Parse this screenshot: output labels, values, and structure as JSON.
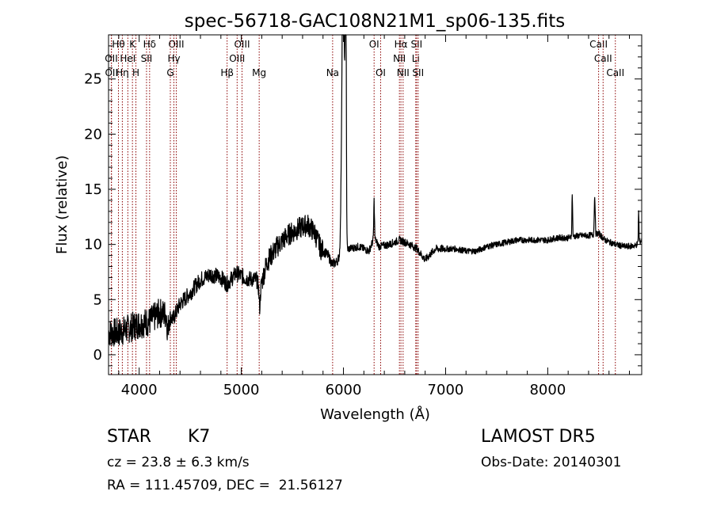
{
  "chart_data": {
    "type": "line",
    "title": "spec-56718-GAC108N21M1_sp06-135.fits",
    "xlabel": "Wavelength (Å)",
    "ylabel": "Flux (relative)",
    "xlim": [
      3700,
      8920
    ],
    "ylim": [
      -1.8,
      29
    ],
    "xticks": [
      4000,
      5000,
      6000,
      7000,
      8000
    ],
    "yticks": [
      0,
      5,
      10,
      15,
      20,
      25
    ],
    "lines": [
      {
        "name": "Hθ",
        "x": 3797,
        "row": 0
      },
      {
        "name": "K",
        "x": 3934,
        "row": 0
      },
      {
        "name": "Hδ",
        "x": 4102,
        "row": 0
      },
      {
        "name": "OIII",
        "x": 4363,
        "row": 0
      },
      {
        "name": "OIII",
        "x": 5007,
        "row": 0
      },
      {
        "name": "OI",
        "x": 6300,
        "row": 0
      },
      {
        "name": "Hα",
        "x": 6563,
        "row": 0
      },
      {
        "name": "SII",
        "x": 6716,
        "row": 0
      },
      {
        "name": "CaII",
        "x": 8498,
        "row": 0
      },
      {
        "name": "OII",
        "x": 3727,
        "row": 1
      },
      {
        "name": "HeI",
        "x": 3889,
        "row": 1
      },
      {
        "name": "SII",
        "x": 4072,
        "row": 1
      },
      {
        "name": "Hγ",
        "x": 4340,
        "row": 1
      },
      {
        "name": "OIII",
        "x": 4959,
        "row": 1
      },
      {
        "name": "NII",
        "x": 6548,
        "row": 1
      },
      {
        "name": "Li",
        "x": 6708,
        "row": 1
      },
      {
        "name": "CaII",
        "x": 8542,
        "row": 1
      },
      {
        "name": "OII",
        "x": 3729,
        "row": 2
      },
      {
        "name": "Hη",
        "x": 3835,
        "row": 2
      },
      {
        "name": "H",
        "x": 3968,
        "row": 2
      },
      {
        "name": "G",
        "x": 4305,
        "row": 2
      },
      {
        "name": "Hβ",
        "x": 4861,
        "row": 2
      },
      {
        "name": "Mg",
        "x": 5175,
        "row": 2
      },
      {
        "name": "Na",
        "x": 5894,
        "row": 2
      },
      {
        "name": "OI",
        "x": 6364,
        "row": 2
      },
      {
        "name": "NII",
        "x": 6584,
        "row": 2
      },
      {
        "name": "SII",
        "x": 6731,
        "row": 2
      },
      {
        "name": "CaII",
        "x": 8662,
        "row": 2
      }
    ],
    "spectrum_anchors": [
      [
        3700,
        2.0
      ],
      [
        3800,
        2.0
      ],
      [
        3900,
        2.4
      ],
      [
        4000,
        2.8
      ],
      [
        4100,
        3.0
      ],
      [
        4200,
        3.8
      ],
      [
        4280,
        3.6
      ],
      [
        4330,
        3.2
      ],
      [
        4400,
        4.6
      ],
      [
        4500,
        5.6
      ],
      [
        4600,
        6.8
      ],
      [
        4700,
        7.3
      ],
      [
        4800,
        7.0
      ],
      [
        4860,
        6.4
      ],
      [
        4950,
        7.4
      ],
      [
        5050,
        6.9
      ],
      [
        5150,
        6.8
      ],
      [
        5180,
        5.8
      ],
      [
        5250,
        8.4
      ],
      [
        5350,
        9.8
      ],
      [
        5450,
        10.8
      ],
      [
        5550,
        11.4
      ],
      [
        5650,
        11.8
      ],
      [
        5720,
        11.0
      ],
      [
        5780,
        9.6
      ],
      [
        5850,
        9.0
      ],
      [
        5890,
        8.2
      ],
      [
        5930,
        8.4
      ],
      [
        5990,
        9.2
      ],
      [
        6050,
        9.6
      ],
      [
        6150,
        9.8
      ],
      [
        6250,
        9.4
      ],
      [
        6300,
        10.6
      ],
      [
        6350,
        9.8
      ],
      [
        6450,
        10.0
      ],
      [
        6550,
        10.4
      ],
      [
        6650,
        10.0
      ],
      [
        6720,
        9.6
      ],
      [
        6800,
        8.6
      ],
      [
        6900,
        9.6
      ],
      [
        7000,
        9.6
      ],
      [
        7100,
        9.6
      ],
      [
        7200,
        9.4
      ],
      [
        7300,
        9.4
      ],
      [
        7400,
        9.8
      ],
      [
        7500,
        10.0
      ],
      [
        7600,
        10.2
      ],
      [
        7700,
        10.4
      ],
      [
        7800,
        10.4
      ],
      [
        7900,
        10.4
      ],
      [
        8000,
        10.4
      ],
      [
        8100,
        10.6
      ],
      [
        8200,
        10.6
      ],
      [
        8300,
        10.8
      ],
      [
        8400,
        10.8
      ],
      [
        8500,
        11.0
      ],
      [
        8560,
        10.4
      ],
      [
        8660,
        10.0
      ],
      [
        8760,
        9.8
      ],
      [
        8860,
        9.9
      ],
      [
        8920,
        10.4
      ]
    ],
    "features": [
      {
        "x": 5997,
        "peak": 26.5,
        "width": 18
      },
      {
        "x": 6022,
        "peak": 30.0,
        "width": 7
      },
      {
        "x": 6300,
        "peak": 3.4,
        "width": 5
      },
      {
        "x": 8240,
        "peak": 3.8,
        "width": 5
      },
      {
        "x": 8460,
        "peak": 3.6,
        "width": 6
      },
      {
        "x": 8890,
        "peak": 2.8,
        "width": 4
      },
      {
        "x": 5180,
        "peak": -1.5,
        "width": 8
      },
      {
        "x": 4280,
        "peak": -1.6,
        "width": 8
      }
    ]
  },
  "info": {
    "obj_class": "STAR",
    "subclass": "K7",
    "survey": "LAMOST DR5",
    "cz": "cz = 23.8 ± 6.3 km/s",
    "obs_date": "Obs-Date: 20140301",
    "coords": "RA = 111.45709, DEC =  21.56127"
  },
  "colors": {
    "spectrum": "#000000",
    "line_marker": "#8b0000",
    "axes": "#000000"
  }
}
